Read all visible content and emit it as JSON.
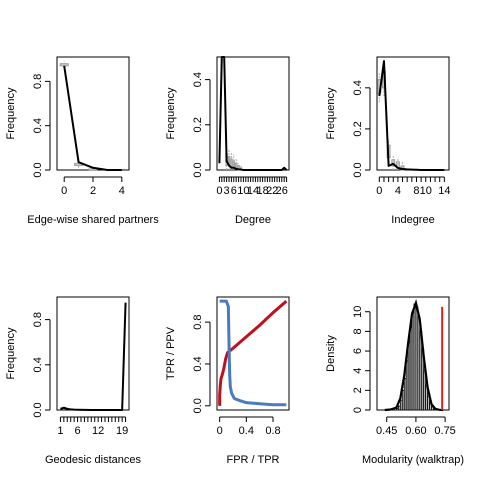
{
  "chart_data": [
    {
      "type": "line",
      "xlabel": "Edge-wise shared partners",
      "ylabel": "Frequency",
      "xlim": [
        -0.5,
        4.5
      ],
      "ylim": [
        0,
        1.02
      ],
      "xticks": [
        0,
        2,
        4
      ],
      "yticks": [
        0.0,
        0.4,
        0.8
      ],
      "series": [
        {
          "x": [
            0,
            1,
            2,
            3,
            4
          ],
          "y": [
            0.94,
            0.07,
            0.02,
            0.0,
            0.0
          ]
        }
      ],
      "boxes": [
        {
          "x": 0,
          "q1": 0.94,
          "q3": 0.96,
          "lo": 0.92,
          "hi": 0.98
        },
        {
          "x": 1,
          "q1": 0.04,
          "q3": 0.06,
          "lo": 0.02,
          "hi": 0.08
        },
        {
          "x": 2,
          "q1": 0.0,
          "q3": 0.01,
          "lo": 0.0,
          "hi": 0.02
        }
      ]
    },
    {
      "type": "line",
      "xlabel": "Degree",
      "ylabel": "Frequency",
      "xlim": [
        -1,
        29
      ],
      "ylim": [
        0,
        0.5
      ],
      "xticks": [
        0,
        3,
        6,
        10,
        14,
        18,
        22,
        26
      ],
      "xminor": [
        1,
        2,
        4,
        5,
        7,
        8,
        9,
        11,
        12,
        13,
        15,
        16,
        17,
        19,
        20,
        21,
        23,
        24,
        25,
        27,
        28
      ],
      "yticks": [
        0.0,
        0.2,
        0.4
      ],
      "series": [
        {
          "x": [
            0,
            1,
            2,
            3,
            4,
            5,
            6,
            7,
            8,
            9,
            10,
            12,
            14,
            16,
            18,
            20,
            22,
            24,
            26,
            27,
            28
          ],
          "y": [
            0.03,
            0.5,
            0.5,
            0.04,
            0.02,
            0.01,
            0.01,
            0.005,
            0.003,
            0.002,
            0.0,
            0.0,
            0.0,
            0.0,
            0.0,
            0.0,
            0.0,
            0.0,
            0.0,
            0.01,
            0.0
          ]
        }
      ],
      "boxes": [
        {
          "x": 3,
          "q1": 0.02,
          "q3": 0.07,
          "lo": 0.0,
          "hi": 0.1
        },
        {
          "x": 4,
          "q1": 0.02,
          "q3": 0.06,
          "lo": 0.0,
          "hi": 0.09
        },
        {
          "x": 5,
          "q1": 0.01,
          "q3": 0.05,
          "lo": 0.0,
          "hi": 0.08
        },
        {
          "x": 6,
          "q1": 0.01,
          "q3": 0.04,
          "lo": 0.0,
          "hi": 0.07
        },
        {
          "x": 7,
          "q1": 0.005,
          "q3": 0.03,
          "lo": 0.0,
          "hi": 0.05
        },
        {
          "x": 8,
          "q1": 0.0,
          "q3": 0.02,
          "lo": 0.0,
          "hi": 0.03
        },
        {
          "x": 9,
          "q1": 0.0,
          "q3": 0.01,
          "lo": 0.0,
          "hi": 0.02
        }
      ]
    },
    {
      "type": "line",
      "xlabel": "Indegree",
      "ylabel": "Frequency",
      "xlim": [
        -0.5,
        15
      ],
      "ylim": [
        0,
        0.55
      ],
      "xticks": [
        0,
        4,
        8,
        10,
        14
      ],
      "xminor": [
        1,
        2,
        3,
        5,
        6,
        7,
        9,
        11,
        12,
        13
      ],
      "yticks": [
        0.0,
        0.2,
        0.4
      ],
      "series": [
        {
          "x": [
            0,
            1,
            2,
            3,
            4,
            5,
            6,
            7,
            8,
            9,
            10,
            11,
            12,
            13,
            14
          ],
          "y": [
            0.36,
            0.53,
            0.02,
            0.03,
            0.01,
            0.005,
            0.003,
            0.002,
            0.001,
            0.0,
            0.0,
            0.0,
            0.0,
            0.0,
            0.0
          ]
        }
      ],
      "boxes": [
        {
          "x": 0,
          "q1": 0.37,
          "q3": 0.44,
          "lo": 0.33,
          "hi": 0.47
        },
        {
          "x": 1,
          "q1": 0.4,
          "q3": 0.48,
          "lo": 0.36,
          "hi": 0.51
        },
        {
          "x": 2,
          "q1": 0.06,
          "q3": 0.12,
          "lo": 0.03,
          "hi": 0.15
        },
        {
          "x": 3,
          "q1": 0.02,
          "q3": 0.05,
          "lo": 0.0,
          "hi": 0.07
        },
        {
          "x": 4,
          "q1": 0.01,
          "q3": 0.04,
          "lo": 0.0,
          "hi": 0.06
        },
        {
          "x": 5,
          "q1": 0.0,
          "q3": 0.02,
          "lo": 0.0,
          "hi": 0.04
        }
      ]
    },
    {
      "type": "line",
      "xlabel": "Geodesic distances",
      "ylabel": "Frequency",
      "xlim": [
        0,
        21
      ],
      "ylim": [
        0,
        1.0
      ],
      "xticks": [
        1,
        6,
        12,
        19
      ],
      "xminor": [
        2,
        3,
        4,
        5,
        7,
        8,
        9,
        10,
        11,
        13,
        14,
        15,
        16,
        17,
        18,
        20
      ],
      "yticks": [
        0.0,
        0.4,
        0.8
      ],
      "series": [
        {
          "x": [
            1,
            2,
            3,
            4,
            5,
            6,
            8,
            10,
            12,
            14,
            16,
            18,
            19,
            20
          ],
          "y": [
            0.01,
            0.02,
            0.01,
            0.005,
            0.003,
            0.002,
            0.001,
            0.0,
            0.0,
            0.0,
            0.0,
            0.0,
            0.0,
            0.95
          ]
        }
      ],
      "boxes": []
    },
    {
      "type": "line",
      "xlabel": "FPR / TPR",
      "ylabel": "TPR / PPV",
      "xlim": [
        -0.04,
        1.04
      ],
      "ylim": [
        -0.04,
        1.04
      ],
      "xticks": [
        0.0,
        0.4,
        0.8
      ],
      "yticks": [
        0.0,
        0.4,
        0.8
      ],
      "series": [
        {
          "color": "#c0101e",
          "x": [
            0.0,
            0.0,
            0.01,
            0.02,
            0.04,
            0.06,
            0.09,
            0.12,
            0.2,
            0.4,
            0.6,
            0.8,
            1.0
          ],
          "y": [
            0.0,
            0.1,
            0.2,
            0.26,
            0.3,
            0.35,
            0.45,
            0.51,
            0.55,
            0.66,
            0.77,
            0.89,
            1.0
          ]
        },
        {
          "color": "#4a7bc0",
          "x": [
            0.0,
            0.05,
            0.1,
            0.13,
            0.14,
            0.15,
            0.16,
            0.18,
            0.22,
            0.3,
            0.4,
            0.6,
            0.8,
            1.0
          ],
          "y": [
            1.0,
            1.0,
            1.0,
            0.95,
            0.6,
            0.3,
            0.18,
            0.12,
            0.07,
            0.05,
            0.03,
            0.02,
            0.01,
            0.01
          ]
        }
      ]
    },
    {
      "type": "bar",
      "xlabel": "Modularity (walktrap)",
      "ylabel": "Density",
      "xlim": [
        0.4,
        0.77
      ],
      "ylim": [
        0,
        11.5
      ],
      "xticks": [
        0.45,
        0.6,
        0.75
      ],
      "xticklabels": [
        "0.45",
        "0.60",
        "0.75"
      ],
      "yticks": [
        0,
        2,
        4,
        6,
        8,
        10
      ],
      "bin_width": 0.01,
      "bin_starts": [
        0.5,
        0.51,
        0.52,
        0.53,
        0.54,
        0.55,
        0.56,
        0.57,
        0.58,
        0.59,
        0.6,
        0.61,
        0.62,
        0.63,
        0.64,
        0.65,
        0.66,
        0.67,
        0.68,
        0.69
      ],
      "values": [
        0.15,
        0.4,
        1.0,
        2.0,
        3.2,
        5.0,
        7.0,
        8.5,
        10.0,
        10.8,
        10.5,
        9.5,
        8.0,
        6.2,
        4.0,
        2.5,
        1.4,
        0.7,
        0.3,
        0.1
      ],
      "density_curve": {
        "x": [
          0.44,
          0.47,
          0.5,
          0.52,
          0.54,
          0.56,
          0.58,
          0.6,
          0.62,
          0.64,
          0.66,
          0.68,
          0.7,
          0.72,
          0.74
        ],
        "y": [
          0.0,
          0.05,
          0.25,
          1.2,
          3.5,
          6.8,
          9.8,
          10.9,
          9.2,
          5.5,
          2.3,
          0.6,
          0.12,
          0.02,
          0.0
        ]
      },
      "observed_line": {
        "x": 0.735,
        "color": "#e0201e"
      }
    }
  ]
}
